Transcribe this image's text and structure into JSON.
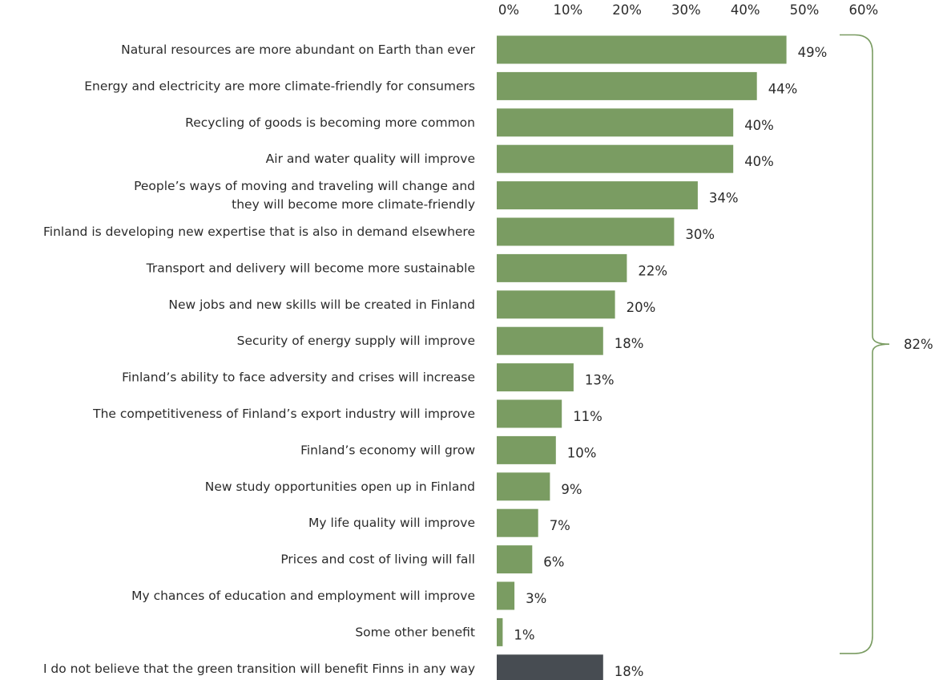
{
  "chart_data": {
    "type": "bar",
    "orientation": "horizontal",
    "title": "",
    "xlabel": "",
    "ylabel": "",
    "xlim": [
      0,
      60
    ],
    "x_ticks": [
      "0%",
      "10%",
      "20%",
      "30%",
      "40%",
      "50%",
      "60%"
    ],
    "x_tick_values": [
      0,
      10,
      20,
      30,
      40,
      50,
      60
    ],
    "x_axis_position": "top",
    "grid": false,
    "categories": [
      "Natural resources are more abundant on Earth than ever",
      "Energy and electricity are more climate-friendly for consumers",
      "Recycling of goods is becoming more common",
      "Air and water quality will improve",
      "People’s ways of moving and traveling will change and they will become more climate-friendly",
      "Finland is developing new expertise that is also in demand elsewhere",
      "Transport and delivery will become more sustainable",
      "New jobs and new skills will be created in Finland",
      "Security of energy supply will improve",
      "Finland’s ability to face adversity and crises will increase",
      "The competitiveness of Finland’s export industry will improve",
      "Finland’s economy will grow",
      "New study opportunities open up in Finland",
      "My life quality will improve",
      "Prices and cost of living will fall",
      "My chances of education and employment will improve",
      "Some other benefit",
      "I do not believe that the green transition will benefit Finns in any way"
    ],
    "category_lines": [
      [
        "Natural resources are more abundant on Earth than ever"
      ],
      [
        "Energy and electricity are more climate-friendly for consumers"
      ],
      [
        "Recycling of goods is becoming more common"
      ],
      [
        "Air and water quality will improve"
      ],
      [
        "People’s ways of moving and traveling will change and",
        "they will become more climate-friendly"
      ],
      [
        "Finland is developing new expertise that is also in demand elsewhere"
      ],
      [
        "Transport and delivery will become more sustainable"
      ],
      [
        "New jobs and new skills will be created in Finland"
      ],
      [
        "Security of energy supply will improve"
      ],
      [
        "Finland’s ability to face adversity and crises will increase"
      ],
      [
        "The competitiveness of Finland’s export industry will improve"
      ],
      [
        "Finland’s economy will grow"
      ],
      [
        "New study opportunities open up in Finland"
      ],
      [
        "My life quality will improve"
      ],
      [
        "Prices and cost of living will fall"
      ],
      [
        "My chances of education and employment will improve"
      ],
      [
        "Some other benefit"
      ],
      [
        "I do not believe that the green transition will benefit Finns in any way"
      ]
    ],
    "values": [
      49,
      44,
      40,
      40,
      34,
      30,
      22,
      20,
      18,
      13,
      11,
      10,
      9,
      7,
      6,
      3,
      1,
      18
    ],
    "value_labels": [
      "49%",
      "44%",
      "40%",
      "40%",
      "34%",
      "30%",
      "22%",
      "20%",
      "18%",
      "13%",
      "11%",
      "10%",
      "9%",
      "7%",
      "6%",
      "3%",
      "1%",
      "18%"
    ],
    "bar_groups": [
      "benefit",
      "benefit",
      "benefit",
      "benefit",
      "benefit",
      "benefit",
      "benefit",
      "benefit",
      "benefit",
      "benefit",
      "benefit",
      "benefit",
      "benefit",
      "benefit",
      "benefit",
      "benefit",
      "benefit",
      "no-benefit"
    ],
    "colors": {
      "benefit": "#7a9c62",
      "no-benefit": "#474c52",
      "text": "#2b2b2b",
      "brace": "#7a9c62"
    },
    "annotation": {
      "type": "bracket",
      "spans": [
        0,
        16
      ],
      "label": "82%",
      "side": "right"
    }
  }
}
